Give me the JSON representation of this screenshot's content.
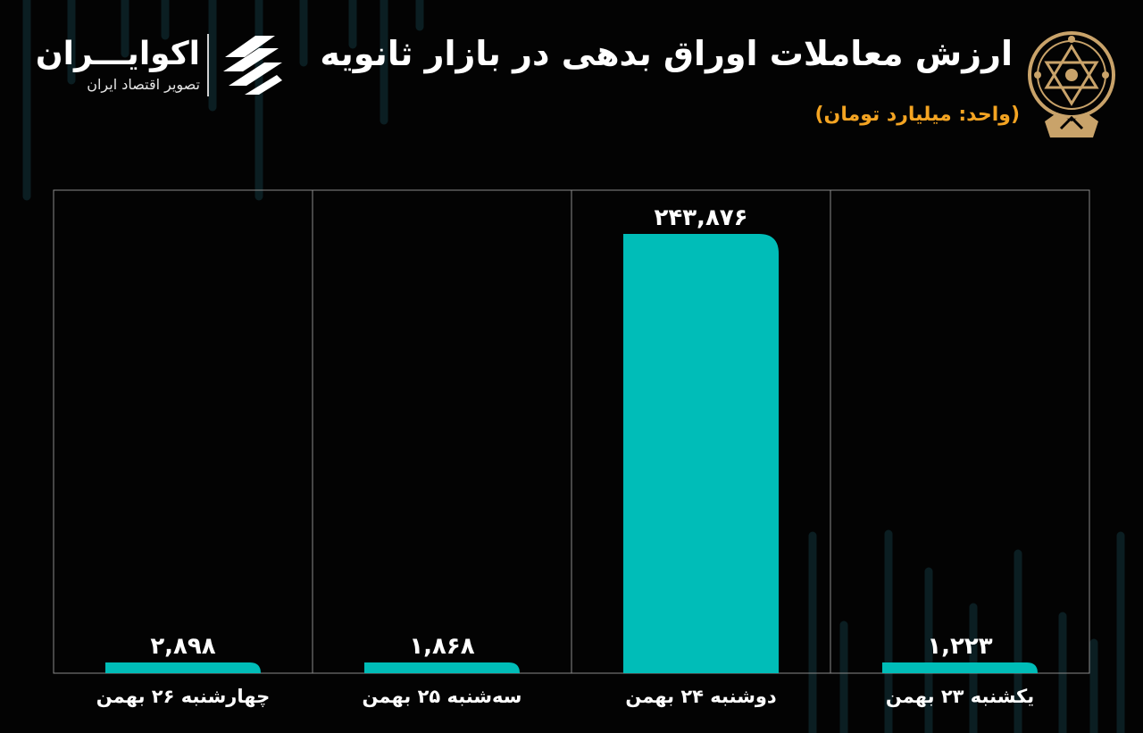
{
  "header": {
    "title": "ارزش معاملات اوراق بدهی در بازار ثانویه",
    "subtitle": "(واحد: میلیارد تومان)"
  },
  "brand": {
    "name": "اکوایـــران",
    "tagline": "تصویر اقتصاد ایران"
  },
  "colors": {
    "bar": "#00bdb8",
    "accent": "#f4a422",
    "background": "#030303",
    "grid": "#8a8a8a"
  },
  "icons": {
    "emblem": "stock-exchange-emblem-icon",
    "brand": "ecoiran-logo-icon"
  },
  "chart_data": {
    "type": "bar",
    "title": "ارزش معاملات اوراق بدهی در بازار ثانویه",
    "ylabel": "",
    "xlabel": "",
    "categories": [
      "یکشنبه ۲۳ بهمن",
      "دوشنبه ۲۴ بهمن",
      "سه‌شنبه ۲۵ بهمن",
      "چهارشنبه ۲۶ بهمن"
    ],
    "values": [
      1223,
      243876,
      1868,
      2898
    ],
    "value_labels": [
      "۱,۲۲۳",
      "۲۴۳,۸۷۶",
      "۱,۸۶۸",
      "۲,۸۹۸"
    ],
    "grid": true,
    "legend": "none"
  }
}
